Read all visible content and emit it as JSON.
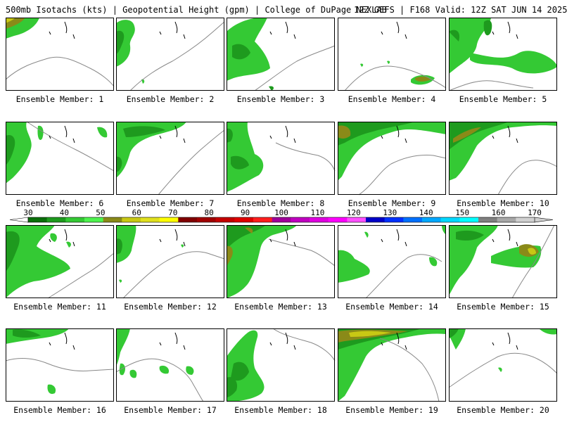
{
  "header": {
    "left": "500mb Isotachs (kts) | Geopotential Height (gpm) | College of DuPage NEXLAB",
    "right": "12Z GEFS | F168 Valid: 12Z SAT JUN 14 2025"
  },
  "panels": [
    {
      "label": "Ensemble Member: 1"
    },
    {
      "label": "Ensemble Member: 2"
    },
    {
      "label": "Ensemble Member: 3"
    },
    {
      "label": "Ensemble Member: 4"
    },
    {
      "label": "Ensemble Member: 5"
    },
    {
      "label": "Ensemble Member: 6"
    },
    {
      "label": "Ensemble Member: 7"
    },
    {
      "label": "Ensemble Member: 8"
    },
    {
      "label": "Ensemble Member: 9"
    },
    {
      "label": "Ensemble Member: 10"
    },
    {
      "label": "Ensemble Member: 11"
    },
    {
      "label": "Ensemble Member: 12"
    },
    {
      "label": "Ensemble Member: 13"
    },
    {
      "label": "Ensemble Member: 14"
    },
    {
      "label": "Ensemble Member: 15"
    },
    {
      "label": "Ensemble Member: 16"
    },
    {
      "label": "Ensemble Member: 17"
    },
    {
      "label": "Ensemble Member: 18"
    },
    {
      "label": "Ensemble Member: 19"
    },
    {
      "label": "Ensemble Member: 20"
    }
  ],
  "colorbar": {
    "ticks": [
      "30",
      "40",
      "50",
      "60",
      "70",
      "80",
      "90",
      "100",
      "110",
      "120",
      "130",
      "140",
      "150",
      "160",
      "170"
    ],
    "colors": [
      "#0a6e0a",
      "#1e9a1e",
      "#34c934",
      "#4ef24e",
      "#8a8a18",
      "#c8c814",
      "#e0e01e",
      "#ffff00",
      "#800000",
      "#a00000",
      "#c40000",
      "#e00000",
      "#ff1e1e",
      "#a0009a",
      "#c000c0",
      "#e000e0",
      "#ff00ff",
      "#ff50ff",
      "#0000c8",
      "#0030ff",
      "#0070ff",
      "#00a8ff",
      "#00d8ff",
      "#00ffff",
      "#808080",
      "#a8a8a8",
      "#d0d0d0"
    ]
  }
}
